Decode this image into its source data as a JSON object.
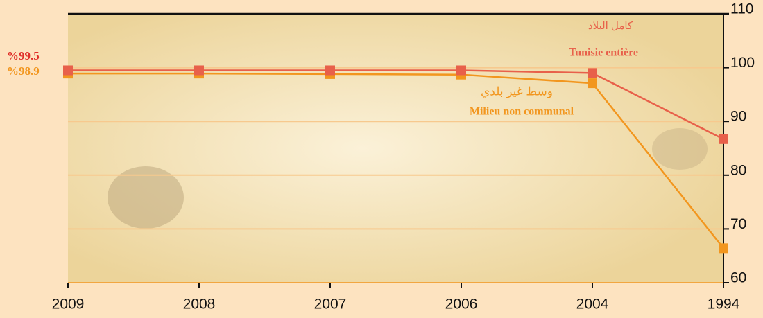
{
  "chart_data": {
    "type": "line",
    "categories": [
      "2009",
      "2008",
      "2007",
      "2006",
      "2004",
      "1994"
    ],
    "series": [
      {
        "name": "Tunisie entière",
        "name_ar": "كامل البلاد",
        "color": "#e8604a",
        "values": [
          99.5,
          99.5,
          99.5,
          99.5,
          99.0,
          86.7
        ],
        "value_labels": [
          "%99.5",
          null,
          null,
          null,
          null,
          null
        ]
      },
      {
        "name": "Milieu non communal",
        "name_ar": "وسط غير بلدي",
        "color": "#f2961e",
        "values": [
          98.9,
          98.9,
          98.8,
          98.7,
          97.1,
          66.4
        ],
        "value_labels": [
          "%98.9",
          null,
          null,
          null,
          null,
          null
        ]
      }
    ],
    "ylim": [
      60,
      110
    ],
    "yticks": [
      60,
      70,
      80,
      90,
      100,
      110
    ],
    "grid": true
  }
}
